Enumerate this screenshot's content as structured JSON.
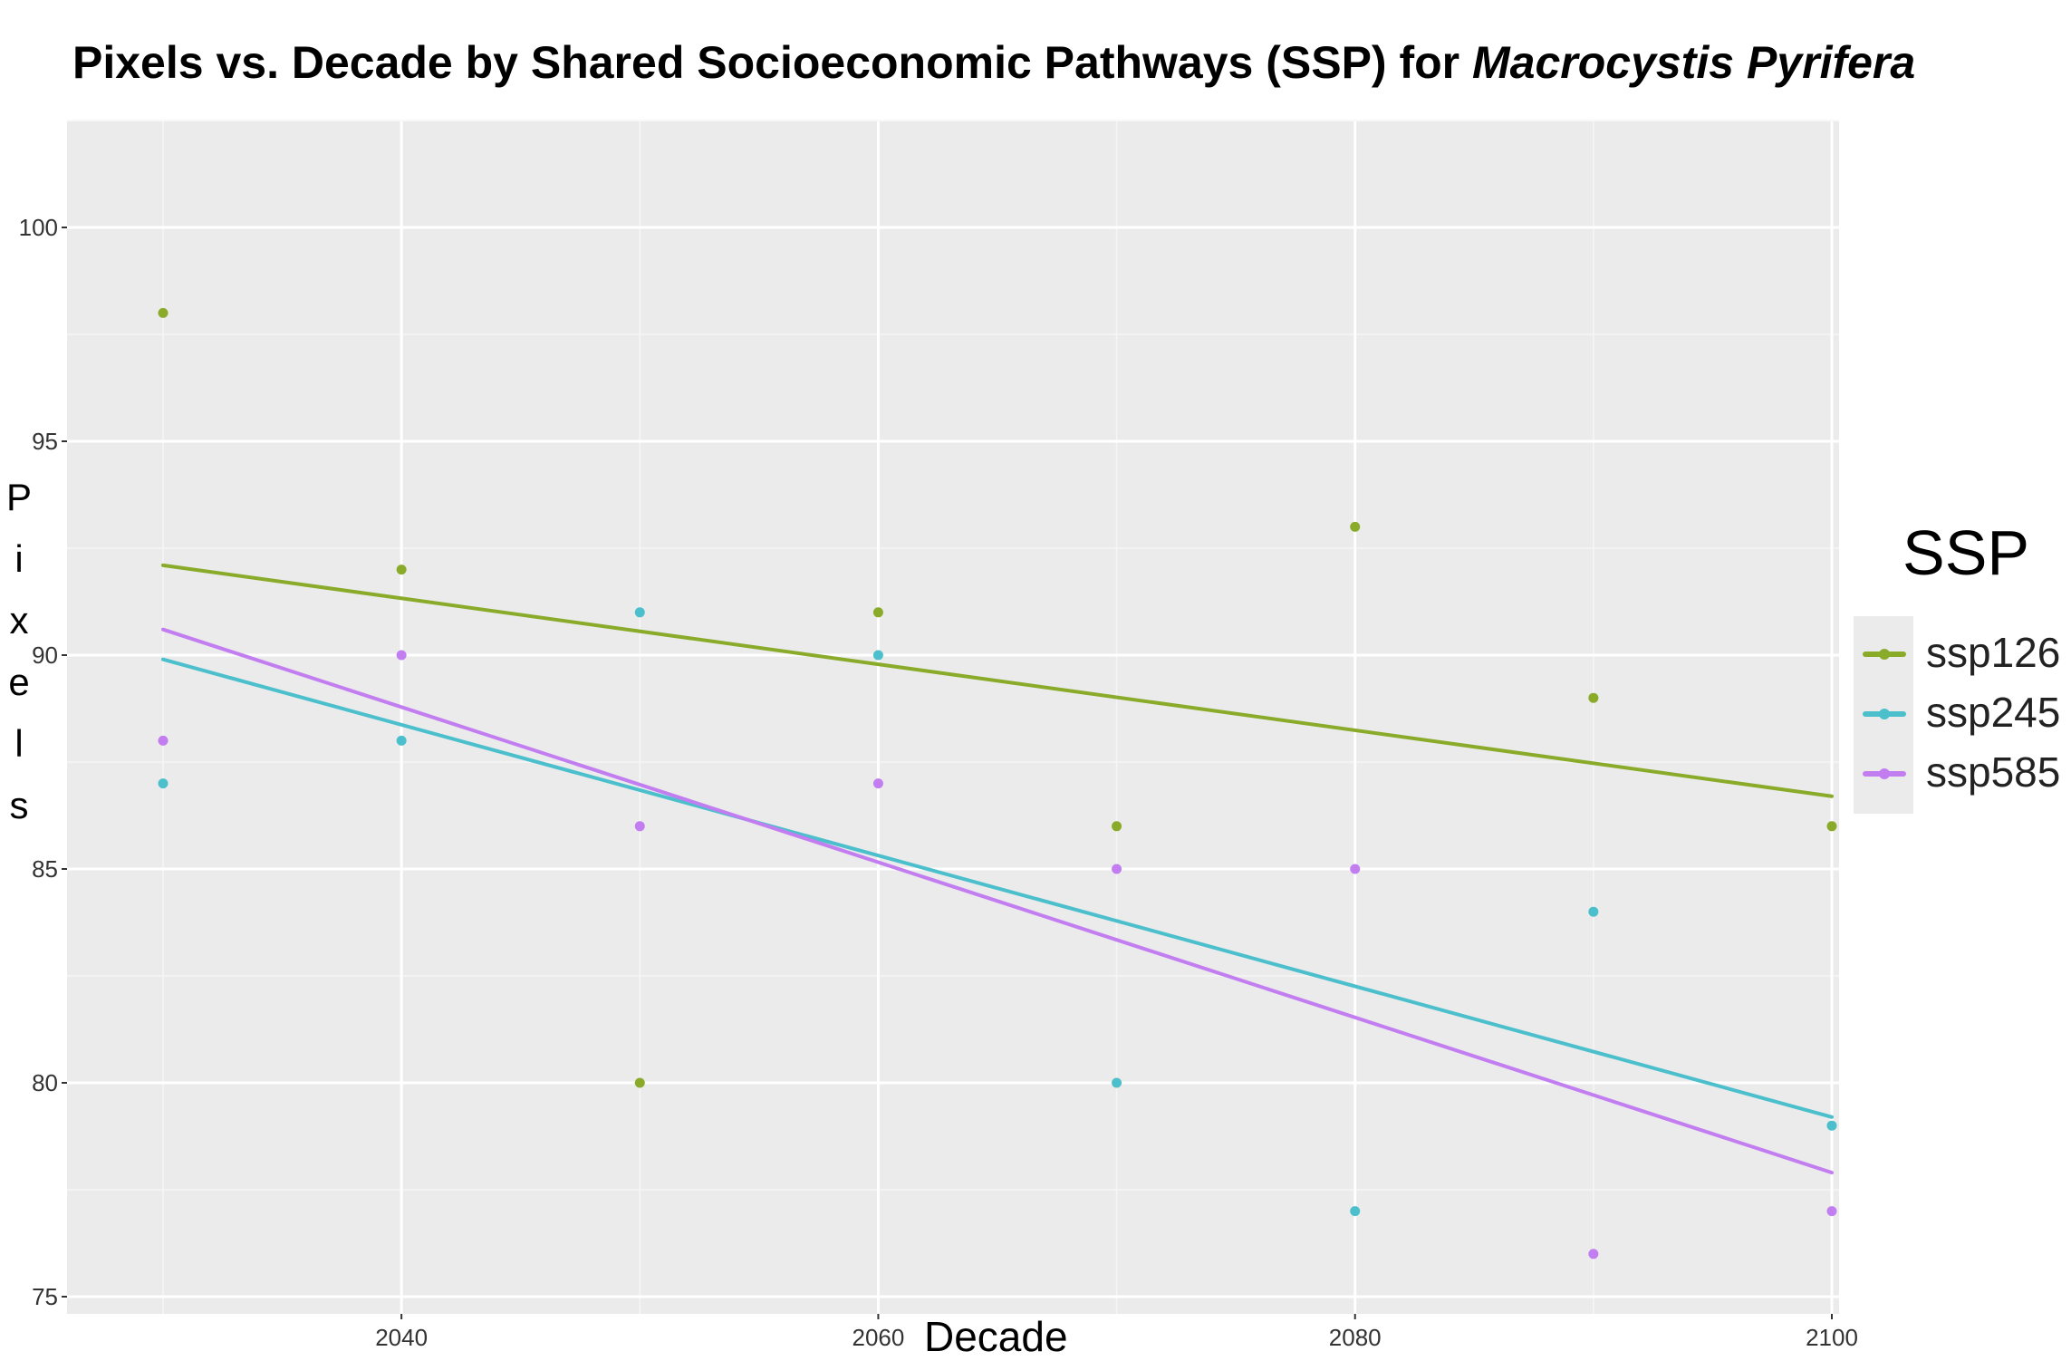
{
  "title": {
    "prefix": "Pixels vs. Decade by Shared Socioeconomic Pathways (SSP) for ",
    "species": "Macrocystis Pyrifera"
  },
  "chart_data": {
    "type": "scatter",
    "title": "Pixels vs. Decade by Shared Socioeconomic Pathways (SSP) for Macrocystis Pyrifera",
    "xlabel": "Decade",
    "ylabel": "Pixels",
    "xlim": [
      2028,
      2100
    ],
    "ylim": [
      74.5,
      102.5
    ],
    "x_ticks": [
      2040,
      2060,
      2080,
      2100
    ],
    "y_ticks": [
      75,
      80,
      85,
      90,
      95,
      100
    ],
    "x_tick_labels": [
      "2040",
      "2060",
      "2080",
      "2100"
    ],
    "y_tick_labels": [
      "75",
      "80",
      "85",
      "90",
      "95",
      "100"
    ],
    "grid": true,
    "legend_title": "SSP",
    "legend_position": "right",
    "x": [
      2030,
      2040,
      2050,
      2060,
      2070,
      2080,
      2090,
      2100
    ],
    "series": [
      {
        "name": "ssp126",
        "color": "#8aab2a",
        "values": [
          98,
          92,
          80,
          91,
          86,
          93,
          89,
          86
        ],
        "fit": [
          92.1,
          86.7
        ]
      },
      {
        "name": "ssp245",
        "color": "#4bbfcc",
        "values": [
          87,
          88,
          91,
          90,
          80,
          77,
          84,
          79
        ],
        "fit": [
          89.9,
          79.2
        ]
      },
      {
        "name": "ssp585",
        "color": "#c27ef0",
        "values": [
          88,
          90,
          86,
          87,
          85,
          85,
          76,
          77
        ],
        "fit": [
          90.6,
          77.9
        ]
      }
    ]
  }
}
